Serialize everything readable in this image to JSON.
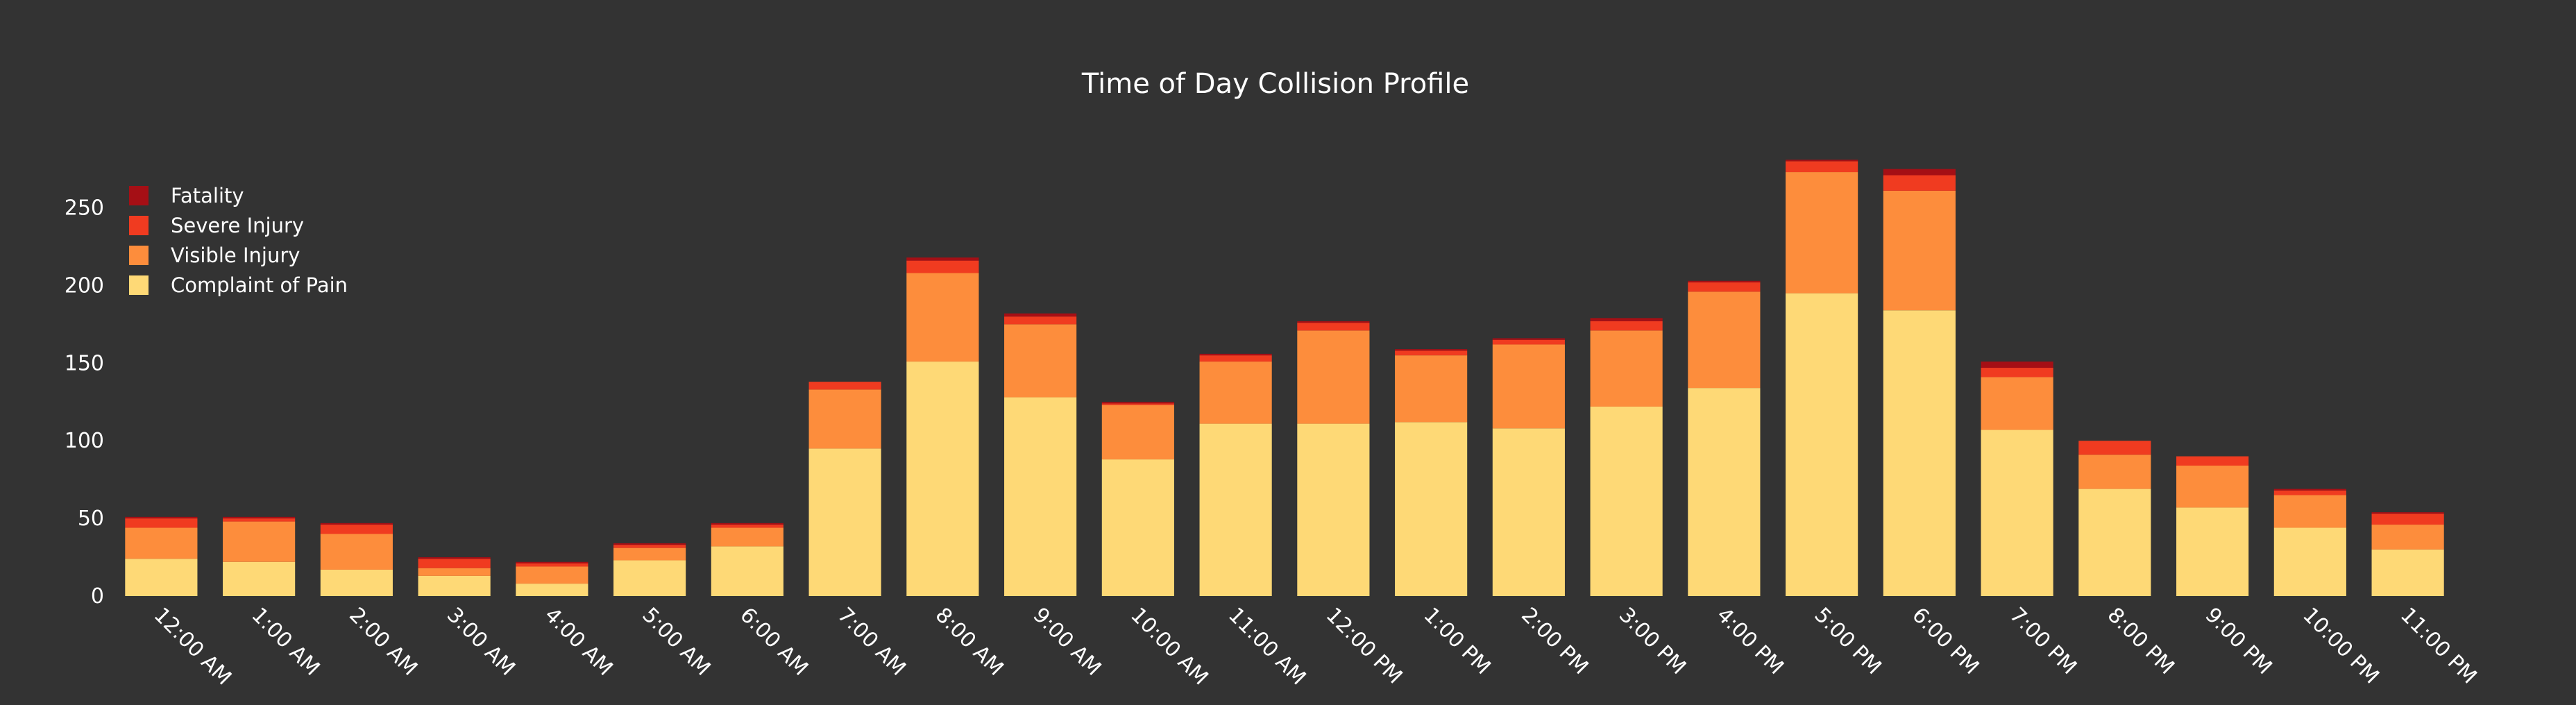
{
  "chart_data": {
    "type": "bar",
    "stacked": true,
    "title": "Time of Day Collision Profile",
    "xlabel": "",
    "ylabel": "",
    "ylim": [
      0,
      290
    ],
    "yticks": [
      0,
      50,
      100,
      150,
      200,
      250
    ],
    "grid": false,
    "legend_position": "top-left",
    "categories": [
      "12:00 AM",
      "1:00 AM",
      "2:00 AM",
      "3:00 AM",
      "4:00 AM",
      "5:00 AM",
      "6:00 AM",
      "7:00 AM",
      "8:00 AM",
      "9:00 AM",
      "10:00 AM",
      "11:00 AM",
      "12:00 PM",
      "1:00 PM",
      "2:00 PM",
      "3:00 PM",
      "4:00 PM",
      "5:00 PM",
      "6:00 PM",
      "7:00 PM",
      "8:00 PM",
      "9:00 PM",
      "10:00 PM",
      "11:00 PM"
    ],
    "series": [
      {
        "name": "Complaint of Pain",
        "color": "#FED976",
        "values": [
          24,
          22,
          17,
          13,
          8,
          23,
          32,
          95,
          151,
          128,
          88,
          111,
          111,
          112,
          108,
          122,
          134,
          195,
          184,
          107,
          69,
          57,
          44,
          30
        ]
      },
      {
        "name": "Visible Injury",
        "color": "#FD8D3C",
        "values": [
          20,
          26,
          23,
          5,
          11,
          8,
          12,
          38,
          57,
          47,
          35,
          40,
          60,
          43,
          54,
          49,
          62,
          78,
          77,
          34,
          22,
          27,
          21,
          16
        ]
      },
      {
        "name": "Severe Injury",
        "color": "#F03B20",
        "values": [
          6,
          2,
          6,
          6,
          2,
          2,
          2,
          5,
          8,
          5,
          1,
          4,
          5,
          3,
          3,
          6,
          6,
          7,
          10,
          6,
          9,
          6,
          3,
          7
        ]
      },
      {
        "name": "Fatality",
        "color": "#A50F15",
        "values": [
          1,
          1,
          1,
          1,
          1,
          1,
          1,
          0,
          2,
          2,
          1,
          1,
          1,
          1,
          1,
          2,
          1,
          1,
          4,
          4,
          0,
          0,
          1,
          1
        ]
      }
    ]
  }
}
